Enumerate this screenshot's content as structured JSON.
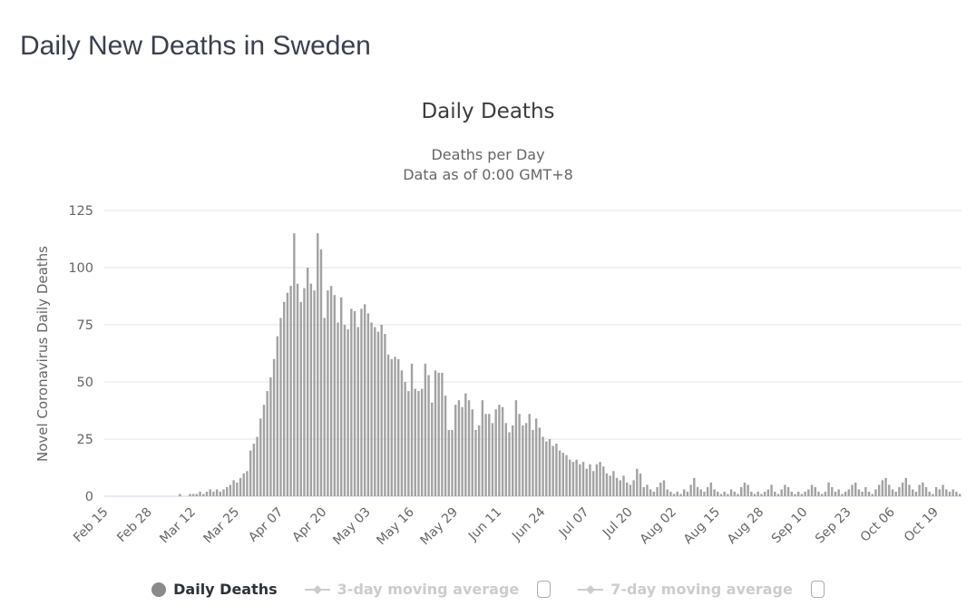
{
  "page": {
    "title": "Daily New Deaths in Sweden"
  },
  "colors": {
    "page_title": "#3b3f4f",
    "chart_title": "#3c3c3c",
    "subtitle": "#666666",
    "axis_label": "#666666",
    "gridline": "#e6e6e6",
    "axis_line": "#ccd6eb",
    "bar": "#a2a2a2",
    "legend_enabled_text": "#2e323b",
    "legend_disabled": "#cccccc",
    "legend_circle": "#8a8a8a"
  },
  "legend": {
    "items": [
      {
        "label": "Daily Deaths",
        "marker": "circle-icon",
        "enabled": true,
        "has_checkbox": false
      },
      {
        "label": "3-day moving average",
        "marker": "line-diamond-icon",
        "enabled": false,
        "has_checkbox": true,
        "checked": false
      },
      {
        "label": "7-day moving average",
        "marker": "line-diamond-icon",
        "enabled": false,
        "has_checkbox": true,
        "checked": false
      }
    ]
  },
  "chart_data": {
    "type": "bar",
    "title": "Daily Deaths",
    "subtitle": [
      "Deaths per Day",
      "Data as of 0:00 GMT+8"
    ],
    "ylabel": "Novel Coronavirus Daily Deaths",
    "ylim": [
      0,
      125
    ],
    "yticks": [
      0,
      25,
      50,
      75,
      100,
      125
    ],
    "grid": true,
    "legend_position": "bottom",
    "x_start_label": "Feb 15",
    "x_tick_interval_days": 13,
    "x_tick_labels": [
      "Feb 15",
      "Feb 28",
      "Mar 12",
      "Mar 25",
      "Apr 07",
      "Apr 20",
      "May 03",
      "May 16",
      "May 29",
      "Jun 11",
      "Jun 24",
      "Jul 07",
      "Jul 20",
      "Aug 02",
      "Aug 15",
      "Aug 28",
      "Sep 10",
      "Sep 23",
      "Oct 06",
      "Oct 19"
    ],
    "series": [
      {
        "name": "Daily Deaths",
        "color": "#a2a2a2",
        "values": [
          0,
          0,
          0,
          0,
          0,
          0,
          0,
          0,
          0,
          0,
          0,
          0,
          0,
          0,
          0,
          0,
          0,
          0,
          0,
          0,
          0,
          0,
          1,
          0,
          0,
          1,
          1,
          1,
          2,
          1,
          2,
          3,
          2,
          3,
          2,
          3,
          4,
          5,
          7,
          6,
          8,
          10,
          11,
          20,
          23,
          26,
          34,
          40,
          46,
          52,
          60,
          70,
          78,
          85,
          89,
          92,
          115,
          93,
          85,
          91,
          100,
          93,
          90,
          115,
          108,
          78,
          90,
          92,
          88,
          76,
          87,
          75,
          73,
          82,
          81,
          74,
          82,
          84,
          80,
          76,
          74,
          72,
          75,
          71,
          62,
          60,
          61,
          60,
          55,
          50,
          46,
          58,
          47,
          46,
          47,
          58,
          53,
          41,
          55,
          54,
          54,
          44,
          29,
          29,
          40,
          42,
          39,
          45,
          42,
          38,
          29,
          31,
          42,
          36,
          36,
          32,
          38,
          40,
          39,
          32,
          28,
          31,
          42,
          36,
          31,
          32,
          36,
          29,
          34,
          30,
          26,
          24,
          25,
          22,
          23,
          20,
          19,
          18,
          16,
          15,
          16,
          14,
          15,
          12,
          14,
          11,
          14,
          15,
          13,
          10,
          9,
          11,
          8,
          7,
          9,
          6,
          5,
          7,
          12,
          10,
          4,
          5,
          3,
          2,
          4,
          6,
          7,
          3,
          2,
          1,
          2,
          1,
          3,
          2,
          5,
          8,
          4,
          3,
          2,
          4,
          6,
          3,
          2,
          1,
          2,
          1,
          3,
          2,
          1,
          4,
          6,
          5,
          2,
          1,
          2,
          1,
          2,
          3,
          5,
          2,
          1,
          3,
          5,
          4,
          2,
          1,
          2,
          1,
          2,
          3,
          5,
          4,
          2,
          1,
          2,
          6,
          4,
          2,
          3,
          1,
          2,
          3,
          5,
          6,
          3,
          2,
          4,
          2,
          1,
          3,
          5,
          7,
          8,
          5,
          3,
          2,
          4,
          6,
          8,
          5,
          3,
          2,
          5,
          6,
          4,
          2,
          1,
          4,
          3,
          5,
          3,
          2,
          3,
          2,
          1
        ]
      }
    ],
    "disabled_series": [
      "3-day moving average",
      "7-day moving average"
    ]
  }
}
